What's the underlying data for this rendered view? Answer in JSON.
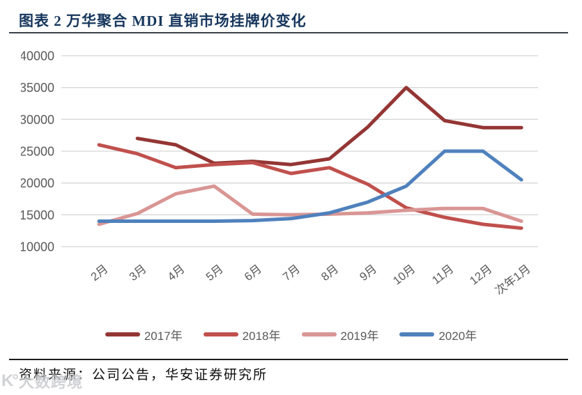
{
  "title": {
    "text": "图表 2 万华聚合 MDI 直销市场挂牌价变化"
  },
  "footer": {
    "source": "资料来源：公司公告，华安证券研究所"
  },
  "watermark": {
    "logo": "K°",
    "text": "大数跨境"
  },
  "colors": {
    "title_navy": "#16365C",
    "axis_text": "#595959",
    "gridline": "#d6d6d6"
  },
  "chart_data": {
    "type": "line",
    "title": "万华聚合MDI直销市场挂牌价变化",
    "categories": [
      "2月",
      "3月",
      "4月",
      "5月",
      "6月",
      "7月",
      "8月",
      "9月",
      "10月",
      "11月",
      "12月",
      "次年1月"
    ],
    "y_ticks": [
      10000,
      15000,
      20000,
      25000,
      30000,
      35000,
      40000
    ],
    "ylim": [
      10000,
      40000
    ],
    "grid": "horizontal",
    "legend_position": "bottom",
    "series": [
      {
        "name": "2017年",
        "color": "#943634",
        "values": [
          null,
          27000,
          26000,
          23100,
          23400,
          22900,
          23800,
          28800,
          35000,
          29800,
          28700,
          28700
        ]
      },
      {
        "name": "2018年",
        "color": "#C0504D",
        "values": [
          26000,
          24600,
          22400,
          22900,
          23200,
          21500,
          22400,
          19800,
          16100,
          14600,
          13500,
          12900
        ]
      },
      {
        "name": "2019年",
        "color": "#D99694",
        "values": [
          13500,
          15200,
          18300,
          19500,
          15100,
          15000,
          15100,
          15300,
          15700,
          16000,
          16000,
          14000
        ]
      },
      {
        "name": "2020年",
        "color": "#4F81BD",
        "values": [
          14000,
          14000,
          14000,
          14000,
          14100,
          14400,
          15300,
          17000,
          19500,
          25000,
          25000,
          20500
        ]
      }
    ]
  }
}
